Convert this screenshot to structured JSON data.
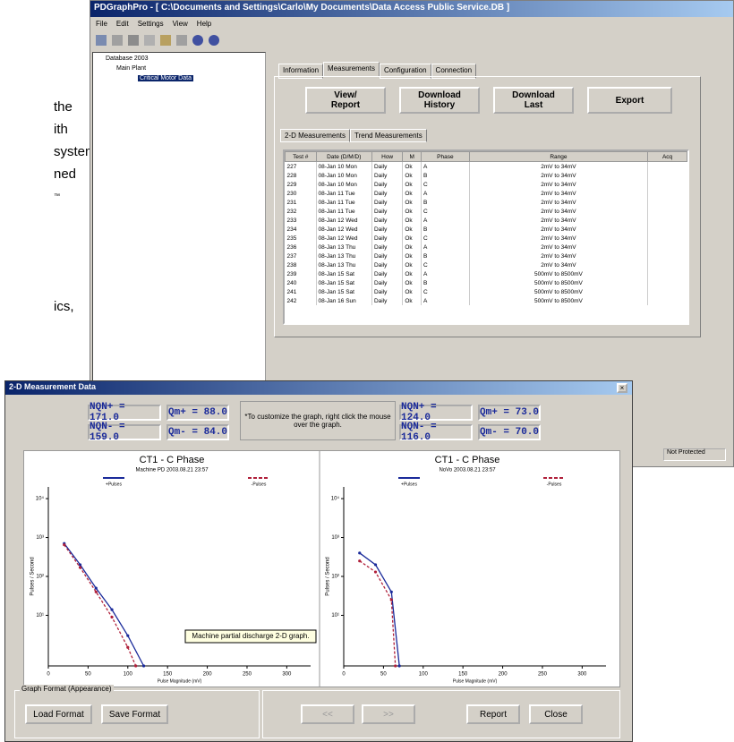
{
  "background_text": [
    "the",
    "ith",
    "system",
    "ned",
    "™",
    "ics,"
  ],
  "main_window": {
    "title": "PDGraphPro - [ C:\\Documents and Settings\\Carlo\\My Documents\\Data Access Public Service.DB ]",
    "menu": [
      "File",
      "Edit",
      "Settings",
      "View",
      "Help"
    ],
    "tree": [
      "Database 2003",
      "Main Plant",
      "Critical Motor Data"
    ],
    "tabs": [
      "Information",
      "Measurements",
      "Configuration",
      "Connection"
    ],
    "buttons": [
      "View/\nReport",
      "Download\nHistory",
      "Download\nLast",
      "Export"
    ],
    "subtabs": [
      "2-D Measurements",
      "Trend Measurements"
    ],
    "table": {
      "columns": [
        "Test #",
        "Date (D/M/D)",
        "How",
        "M",
        "Phase",
        "Range",
        "Acq"
      ],
      "rows": [
        [
          "227",
          "08-Jan 10 Mon",
          "Daily",
          "Ok",
          "A",
          "2mV to 34mV"
        ],
        [
          "228",
          "08-Jan 10 Mon",
          "Daily",
          "Ok",
          "B",
          "2mV to 34mV"
        ],
        [
          "229",
          "08-Jan 10 Mon",
          "Daily",
          "Ok",
          "C",
          "2mV to 34mV"
        ],
        [
          "230",
          "08-Jan 11 Tue",
          "Daily",
          "Ok",
          "A",
          "2mV to 34mV"
        ],
        [
          "231",
          "08-Jan 11 Tue",
          "Daily",
          "Ok",
          "B",
          "2mV to 34mV"
        ],
        [
          "232",
          "08-Jan 11 Tue",
          "Daily",
          "Ok",
          "C",
          "2mV to 34mV"
        ],
        [
          "233",
          "08-Jan 12 Wed",
          "Daily",
          "Ok",
          "A",
          "2mV to 34mV"
        ],
        [
          "234",
          "08-Jan 12 Wed",
          "Daily",
          "Ok",
          "B",
          "2mV to 34mV"
        ],
        [
          "235",
          "08-Jan 12 Wed",
          "Daily",
          "Ok",
          "C",
          "2mV to 34mV"
        ],
        [
          "236",
          "08-Jan 13 Thu",
          "Daily",
          "Ok",
          "A",
          "2mV to 34mV"
        ],
        [
          "237",
          "08-Jan 13 Thu",
          "Daily",
          "Ok",
          "B",
          "2mV to 34mV"
        ],
        [
          "238",
          "08-Jan 13 Thu",
          "Daily",
          "Ok",
          "C",
          "2mV to 34mV"
        ],
        [
          "239",
          "08-Jan 15 Sat",
          "Daily",
          "Ok",
          "A",
          "500mV to 8500mV"
        ],
        [
          "240",
          "08-Jan 15 Sat",
          "Daily",
          "Ok",
          "B",
          "500mV to 8500mV"
        ],
        [
          "241",
          "08-Jan 15 Sat",
          "Daily",
          "Ok",
          "C",
          "500mV to 8500mV"
        ],
        [
          "242",
          "08-Jan 16 Sun",
          "Daily",
          "Ok",
          "A",
          "500mV to 8500mV"
        ]
      ]
    },
    "status": "Not Protected"
  },
  "dialog": {
    "title": "2-D Measurement Data",
    "left_stats": [
      "NQN+ = 171.0",
      "Qm+ = 88.0",
      "NQN- = 159.0",
      "Qm- = 84.0"
    ],
    "note": "*To customize the graph, right click the mouse over the graph.",
    "right_stats": [
      "NQN+ = 124.0",
      "Qm+ = 73.0",
      "NQN- = 116.0",
      "Qm- = 70.0"
    ],
    "group_label": "Graph Format (Appearance)",
    "buttons": [
      "Load Format",
      "Save Format",
      "<<",
      ">>",
      "Report",
      "Close"
    ]
  },
  "charts": [
    {
      "type": "line",
      "title": "CT1 - C Phase",
      "subtitle": "Machine PD 2003.08.21 23:57",
      "xlabel": "Pulse Magnitude (mV)",
      "ylabel": "Pulses / Second",
      "annotation": "Machine partial discharge 2-D graph.",
      "log_y": true,
      "xlim": [
        0,
        330
      ],
      "xticks": [
        0,
        50,
        100,
        150,
        200,
        250,
        300
      ],
      "ylim": [
        0.5,
        20000
      ],
      "yticks": [
        {
          "value": 10,
          "label": "10¹"
        },
        {
          "value": 100,
          "label": "10²"
        },
        {
          "value": 1000,
          "label": "10³"
        },
        {
          "value": 10000,
          "label": "10⁴"
        }
      ],
      "series": [
        {
          "name": "+Pulses",
          "color": "#1a2a9a",
          "dashed": false,
          "x": [
            20,
            40,
            60,
            80,
            100,
            120
          ],
          "values": [
            700,
            200,
            50,
            14,
            3,
            0.5
          ]
        },
        {
          "name": "-Pulses",
          "color": "#b0203a",
          "dashed": true,
          "x": [
            20,
            40,
            60,
            80,
            100,
            110
          ],
          "values": [
            650,
            170,
            40,
            9,
            1.5,
            0.5
          ]
        }
      ]
    },
    {
      "type": "line",
      "title": "CT1 - C Phase",
      "subtitle": "NoVo 2003.08.21 23:57",
      "xlabel": "Pulse Magnitude (mV)",
      "ylabel": "Pulses / Second",
      "log_y": true,
      "xlim": [
        0,
        330
      ],
      "xticks": [
        0,
        50,
        100,
        150,
        200,
        250,
        300
      ],
      "ylim": [
        0.5,
        20000
      ],
      "yticks": [
        {
          "value": 10,
          "label": "10¹"
        },
        {
          "value": 100,
          "label": "10²"
        },
        {
          "value": 1000,
          "label": "10³"
        },
        {
          "value": 10000,
          "label": "10⁴"
        }
      ],
      "series": [
        {
          "name": "+Pulses",
          "color": "#1a2a9a",
          "dashed": false,
          "x": [
            20,
            40,
            60,
            70
          ],
          "values": [
            400,
            200,
            40,
            0.5
          ]
        },
        {
          "name": "-Pulses",
          "color": "#b0203a",
          "dashed": true,
          "x": [
            20,
            40,
            60,
            65
          ],
          "values": [
            250,
            130,
            25,
            0.5
          ]
        }
      ]
    }
  ]
}
